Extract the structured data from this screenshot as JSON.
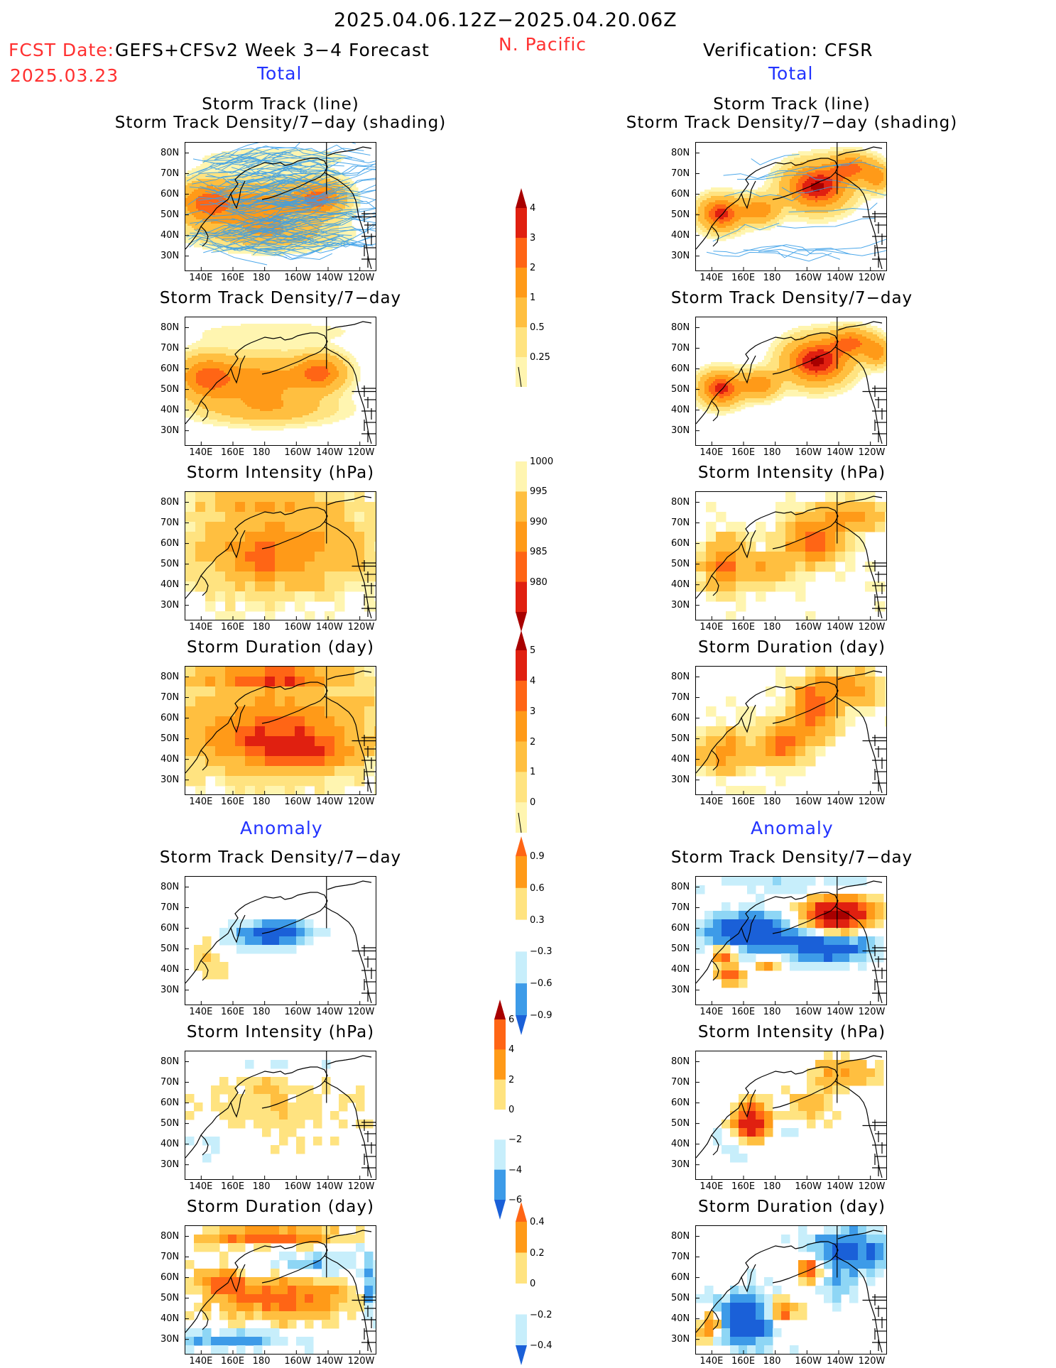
{
  "header": {
    "date_range": "2025.04.06.12Z−2025.04.20.06Z",
    "fcst_date_label": "FCST Date:",
    "fcst_date": "2025.03.23",
    "model": "GEFS+CFSv2 Week 3−4 Forecast",
    "region": "N. Pacific",
    "verification": "Verification: CFSR",
    "left_section": "Total",
    "right_section": "Total",
    "anomaly_left": "Anomaly",
    "anomaly_right": "Anomaly"
  },
  "axes": {
    "lat_labels": [
      "80N",
      "70N",
      "60N",
      "50N",
      "40N",
      "30N"
    ],
    "lon_labels": [
      "140E",
      "160E",
      "180",
      "160W",
      "140W",
      "120W"
    ]
  },
  "colors": {
    "yellow_light": "#fff5b0",
    "yellow": "#ffe380",
    "orange_light": "#ffbf40",
    "orange": "#ff9a18",
    "orange_red": "#ff6515",
    "red": "#e02010",
    "dark_red": "#a80000",
    "blue_light": "#c7eefb",
    "blue_mid": "#8ed6f5",
    "blue": "#3d9be8",
    "blue_dark": "#1a60d8",
    "track_line": "#3a9fe8"
  },
  "panels": {
    "total_track_left": {
      "title_line1": "Storm Track (line)",
      "title_line2": "Storm Track Density/7−day (shading)"
    },
    "total_track_right": {
      "title_line1": "Storm Track (line)",
      "title_line2": "Storm Track Density/7−day (shading)"
    },
    "total_density_left": {
      "title": "Storm Track Density/7−day"
    },
    "total_density_right": {
      "title": "Storm Track Density/7−day"
    },
    "total_intensity_left": {
      "title": "Storm Intensity (hPa)"
    },
    "total_intensity_right": {
      "title": "Storm Intensity (hPa)"
    },
    "total_duration_left": {
      "title": "Storm Duration (day)"
    },
    "total_duration_right": {
      "title": "Storm Duration (day)"
    },
    "anom_density_left": {
      "title": "Storm Track Density/7−day"
    },
    "anom_density_right": {
      "title": "Storm Track Density/7−day"
    },
    "anom_intensity_left": {
      "title": "Storm Intensity (hPa)"
    },
    "anom_intensity_right": {
      "title": "Storm Intensity (hPa)"
    },
    "anom_duration_left": {
      "title": "Storm Duration (day)"
    },
    "anom_duration_right": {
      "title": "Storm Duration (day)"
    }
  },
  "colorbars": {
    "density_total": {
      "labels": [
        "4",
        "3",
        "2",
        "1",
        "0.5",
        "0.25"
      ]
    },
    "intensity_total": {
      "labels": [
        "1000",
        "995",
        "990",
        "985",
        "980"
      ]
    },
    "duration_total": {
      "labels": [
        "5",
        "4",
        "3",
        "2",
        "1",
        "0"
      ]
    },
    "density_anom": {
      "labels": [
        "0.9",
        "0.6",
        "0.3",
        "−0.3",
        "−0.6",
        "−0.9"
      ]
    },
    "intensity_anom": {
      "labels": [
        "6",
        "4",
        "2",
        "0",
        "−2",
        "−4",
        "−6"
      ]
    },
    "duration_anom": {
      "labels": [
        "0.4",
        "0.2",
        "0",
        "−0.2",
        "−0.4"
      ]
    }
  }
}
